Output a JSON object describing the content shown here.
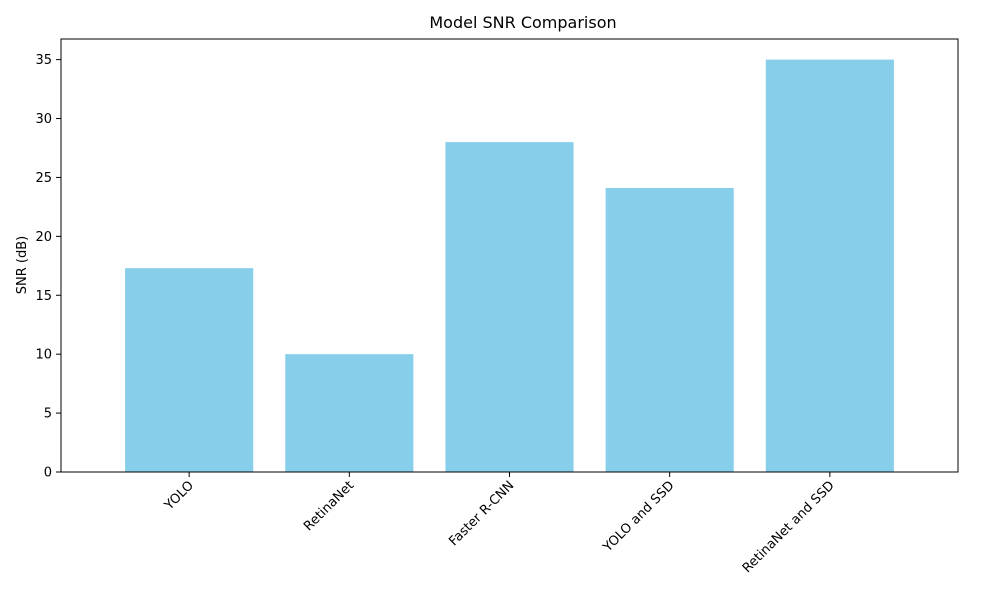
{
  "chart_data": {
    "type": "bar",
    "title": "Model SNR Comparison",
    "xlabel": "",
    "ylabel": "SNR (dB)",
    "categories": [
      "YOLO",
      "RetinaNet",
      "Faster R-CNN",
      "YOLO and SSD",
      "RetinaNet and SSD"
    ],
    "values": [
      17.3,
      10.0,
      28.0,
      24.1,
      35.0
    ],
    "ylim": [
      0,
      36.75
    ],
    "yticks": [
      0,
      5,
      10,
      15,
      20,
      25,
      30,
      35
    ],
    "bar_color": "#87CEEB",
    "grid": false,
    "legend": "none"
  }
}
